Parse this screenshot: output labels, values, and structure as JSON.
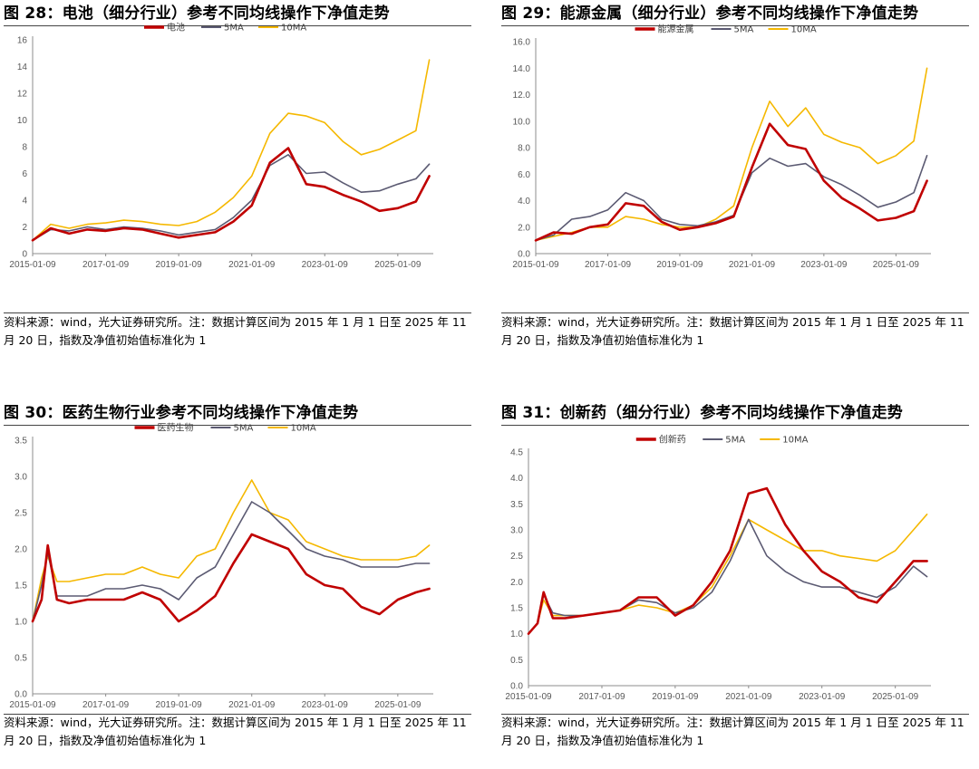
{
  "charts": [
    {
      "title": "图 28：电池（细分行业）参考不同均线操作下净值走势",
      "note_line1": "资料来源：wind，光大证券研究所。注：数据计算区间为 2015 年 1 月 1 日至 2025 年 11",
      "note_line2": "月 20 日，指数及净值初始值标准化为 1"
    },
    {
      "title": "图 29：能源金属（细分行业）参考不同均线操作下净值走势",
      "note_line1": "资料来源：wind，光大证券研究所。注：数据计算区间为 2015 年 1 月 1 日至 2025 年 11",
      "note_line2": "月 20 日，指数及净值初始值标准化为 1"
    },
    {
      "title": "图 30：医药生物行业参考不同均线操作下净值走势",
      "note_line1": "资料来源：wind，光大证券研究所。注：数据计算区间为 2015 年 1 月 1 日至 2025 年 11",
      "note_line2": "月 20 日，指数及净值初始值标准化为 1"
    },
    {
      "title": "图 31：创新药（细分行业）参考不同均线操作下净值走势",
      "note_line1": "资料来源：wind，光大证券研究所。注：数据计算区间为 2015 年 1 月 1 日至 2025 年 11",
      "note_line2": "月 20 日，指数及净值初始值标准化为 1"
    }
  ],
  "chart_data": [
    {
      "type": "line",
      "x_ticks": [
        "2015-01-09",
        "2017-01-09",
        "2019-01-09",
        "2021-01-09",
        "2023-01-09",
        "2025-01-09"
      ],
      "y_ticks": [
        "0",
        "2",
        "4",
        "6",
        "8",
        "10",
        "12",
        "14",
        "16"
      ],
      "ylim": [
        0,
        16
      ],
      "x": [
        "2015-01-09",
        "2015-07-09",
        "2016-01-09",
        "2016-07-09",
        "2017-01-09",
        "2017-07-09",
        "2018-01-09",
        "2018-07-09",
        "2019-01-09",
        "2019-07-09",
        "2020-01-09",
        "2020-07-09",
        "2021-01-09",
        "2021-07-09",
        "2022-01-09",
        "2022-07-09",
        "2023-01-09",
        "2023-07-09",
        "2024-01-09",
        "2024-07-09",
        "2025-01-09",
        "2025-07-09",
        "2025-11-20"
      ],
      "series": [
        {
          "name": "电池",
          "color": "#C00000",
          "width": 2.6,
          "values": [
            1.0,
            1.9,
            1.5,
            1.8,
            1.7,
            1.9,
            1.8,
            1.5,
            1.2,
            1.4,
            1.6,
            2.4,
            3.6,
            6.8,
            7.9,
            5.2,
            5.0,
            4.4,
            3.9,
            3.2,
            3.4,
            3.9,
            5.8
          ]
        },
        {
          "name": "5MA",
          "color": "#5B5A72",
          "width": 1.6,
          "values": [
            1.0,
            1.8,
            1.7,
            2.0,
            1.8,
            2.0,
            1.9,
            1.7,
            1.4,
            1.6,
            1.8,
            2.7,
            4.0,
            6.6,
            7.4,
            6.0,
            6.1,
            5.3,
            4.6,
            4.7,
            5.2,
            5.6,
            6.7
          ]
        },
        {
          "name": "10MA",
          "color": "#F5B800",
          "width": 1.6,
          "values": [
            1.0,
            2.2,
            1.9,
            2.2,
            2.3,
            2.5,
            2.4,
            2.2,
            2.1,
            2.4,
            3.1,
            4.2,
            5.8,
            9.0,
            10.5,
            10.3,
            9.8,
            8.4,
            7.4,
            7.8,
            8.5,
            9.2,
            14.5
          ]
        }
      ]
    },
    {
      "type": "line",
      "x_ticks": [
        "2015-01-09",
        "2017-01-09",
        "2019-01-09",
        "2021-01-09",
        "2023-01-09",
        "2025-01-09"
      ],
      "y_ticks": [
        "0.0",
        "2.0",
        "4.0",
        "6.0",
        "8.0",
        "10.0",
        "12.0",
        "14.0",
        "16.0"
      ],
      "ylim": [
        0,
        16
      ],
      "x": [
        "2015-01-09",
        "2015-07-09",
        "2016-01-09",
        "2016-07-09",
        "2017-01-09",
        "2017-07-09",
        "2018-01-09",
        "2018-07-09",
        "2019-01-09",
        "2019-07-09",
        "2020-01-09",
        "2020-07-09",
        "2021-01-09",
        "2021-07-09",
        "2022-01-09",
        "2022-07-09",
        "2023-01-09",
        "2023-07-09",
        "2024-01-09",
        "2024-07-09",
        "2025-01-09",
        "2025-07-09",
        "2025-11-20"
      ],
      "series": [
        {
          "name": "能源金属",
          "color": "#C00000",
          "width": 2.6,
          "values": [
            1.0,
            1.6,
            1.5,
            2.0,
            2.2,
            3.8,
            3.6,
            2.4,
            1.8,
            2.0,
            2.3,
            2.8,
            6.5,
            9.8,
            8.2,
            7.9,
            5.5,
            4.2,
            3.4,
            2.5,
            2.7,
            3.2,
            5.5
          ]
        },
        {
          "name": "5MA",
          "color": "#5B5A72",
          "width": 1.6,
          "values": [
            1.0,
            1.4,
            2.6,
            2.8,
            3.3,
            4.6,
            4.0,
            2.6,
            2.2,
            2.1,
            2.4,
            2.9,
            6.1,
            7.2,
            6.6,
            6.8,
            5.8,
            5.2,
            4.4,
            3.5,
            3.9,
            4.6,
            7.4
          ]
        },
        {
          "name": "10MA",
          "color": "#F5B800",
          "width": 1.6,
          "values": [
            1.0,
            1.3,
            1.6,
            2.0,
            2.0,
            2.8,
            2.6,
            2.2,
            2.0,
            2.0,
            2.6,
            3.6,
            8.0,
            11.5,
            9.6,
            11.0,
            9.0,
            8.4,
            8.0,
            6.8,
            7.4,
            8.5,
            14.0
          ]
        }
      ]
    },
    {
      "type": "line",
      "x_ticks": [
        "2015-01-09",
        "2017-01-09",
        "2019-01-09",
        "2021-01-09",
        "2023-01-09",
        "2025-01-09"
      ],
      "y_ticks": [
        "0.0",
        "0.5",
        "1.0",
        "1.5",
        "2.0",
        "2.5",
        "3.0",
        "3.5"
      ],
      "ylim": [
        0,
        3.5
      ],
      "x": [
        "2015-01-09",
        "2015-04-09",
        "2015-06-09",
        "2015-09-09",
        "2016-01-09",
        "2016-07-09",
        "2017-01-09",
        "2017-07-09",
        "2018-01-09",
        "2018-07-09",
        "2019-01-09",
        "2019-07-09",
        "2020-01-09",
        "2020-07-09",
        "2021-01-09",
        "2021-07-09",
        "2022-01-09",
        "2022-07-09",
        "2023-01-09",
        "2023-07-09",
        "2024-01-09",
        "2024-07-09",
        "2025-01-09",
        "2025-07-09",
        "2025-11-20"
      ],
      "series": [
        {
          "name": "医药生物",
          "color": "#C00000",
          "width": 2.6,
          "values": [
            1.0,
            1.3,
            2.05,
            1.3,
            1.25,
            1.3,
            1.3,
            1.3,
            1.4,
            1.3,
            1.0,
            1.15,
            1.35,
            1.8,
            2.2,
            2.1,
            2.0,
            1.65,
            1.5,
            1.45,
            1.2,
            1.1,
            1.3,
            1.4,
            1.45
          ]
        },
        {
          "name": "5MA",
          "color": "#5B5A72",
          "width": 1.6,
          "values": [
            1.0,
            1.5,
            1.95,
            1.35,
            1.35,
            1.35,
            1.45,
            1.45,
            1.5,
            1.45,
            1.3,
            1.6,
            1.75,
            2.2,
            2.65,
            2.5,
            2.25,
            2.0,
            1.9,
            1.85,
            1.75,
            1.75,
            1.75,
            1.8,
            1.8
          ]
        },
        {
          "name": "10MA",
          "color": "#F5B800",
          "width": 1.6,
          "values": [
            1.0,
            1.6,
            1.9,
            1.55,
            1.55,
            1.6,
            1.65,
            1.65,
            1.75,
            1.65,
            1.6,
            1.9,
            2.0,
            2.5,
            2.95,
            2.5,
            2.4,
            2.1,
            2.0,
            1.9,
            1.85,
            1.85,
            1.85,
            1.9,
            2.05
          ]
        }
      ]
    },
    {
      "type": "line",
      "x_ticks": [
        "2015-01-09",
        "2017-01-09",
        "2019-01-09",
        "2021-01-09",
        "2023-01-09",
        "2025-01-09"
      ],
      "y_ticks": [
        "0.0",
        "0.5",
        "1.0",
        "1.5",
        "2.0",
        "2.5",
        "3.0",
        "3.5",
        "4.0",
        "4.5"
      ],
      "ylim": [
        0,
        4.5
      ],
      "x": [
        "2015-01-09",
        "2015-04-09",
        "2015-06-09",
        "2015-09-09",
        "2016-01-09",
        "2016-07-09",
        "2017-01-09",
        "2017-07-09",
        "2018-01-09",
        "2018-07-09",
        "2019-01-09",
        "2019-07-09",
        "2020-01-09",
        "2020-07-09",
        "2021-01-09",
        "2021-07-09",
        "2022-01-09",
        "2022-07-09",
        "2023-01-09",
        "2023-07-09",
        "2024-01-09",
        "2024-07-09",
        "2025-01-09",
        "2025-07-09",
        "2025-11-20"
      ],
      "series": [
        {
          "name": "创新药",
          "color": "#C00000",
          "width": 2.6,
          "values": [
            1.0,
            1.2,
            1.8,
            1.3,
            1.3,
            1.35,
            1.4,
            1.45,
            1.7,
            1.7,
            1.35,
            1.55,
            2.0,
            2.6,
            3.7,
            3.8,
            3.1,
            2.6,
            2.2,
            2.0,
            1.7,
            1.6,
            2.0,
            2.4,
            2.4
          ]
        },
        {
          "name": "5MA",
          "color": "#5B5A72",
          "width": 1.6,
          "values": [
            1.0,
            1.2,
            1.75,
            1.4,
            1.35,
            1.35,
            1.4,
            1.45,
            1.65,
            1.6,
            1.4,
            1.5,
            1.8,
            2.4,
            3.2,
            2.5,
            2.2,
            2.0,
            1.9,
            1.9,
            1.8,
            1.7,
            1.9,
            2.3,
            2.1
          ]
        },
        {
          "name": "10MA",
          "color": "#F5B800",
          "width": 1.6,
          "values": [
            1.0,
            1.2,
            1.65,
            1.35,
            1.35,
            1.35,
            1.4,
            1.45,
            1.55,
            1.5,
            1.4,
            1.55,
            1.9,
            2.5,
            3.2,
            3.0,
            2.8,
            2.6,
            2.6,
            2.5,
            2.45,
            2.4,
            2.6,
            3.0,
            3.3
          ]
        }
      ]
    }
  ]
}
